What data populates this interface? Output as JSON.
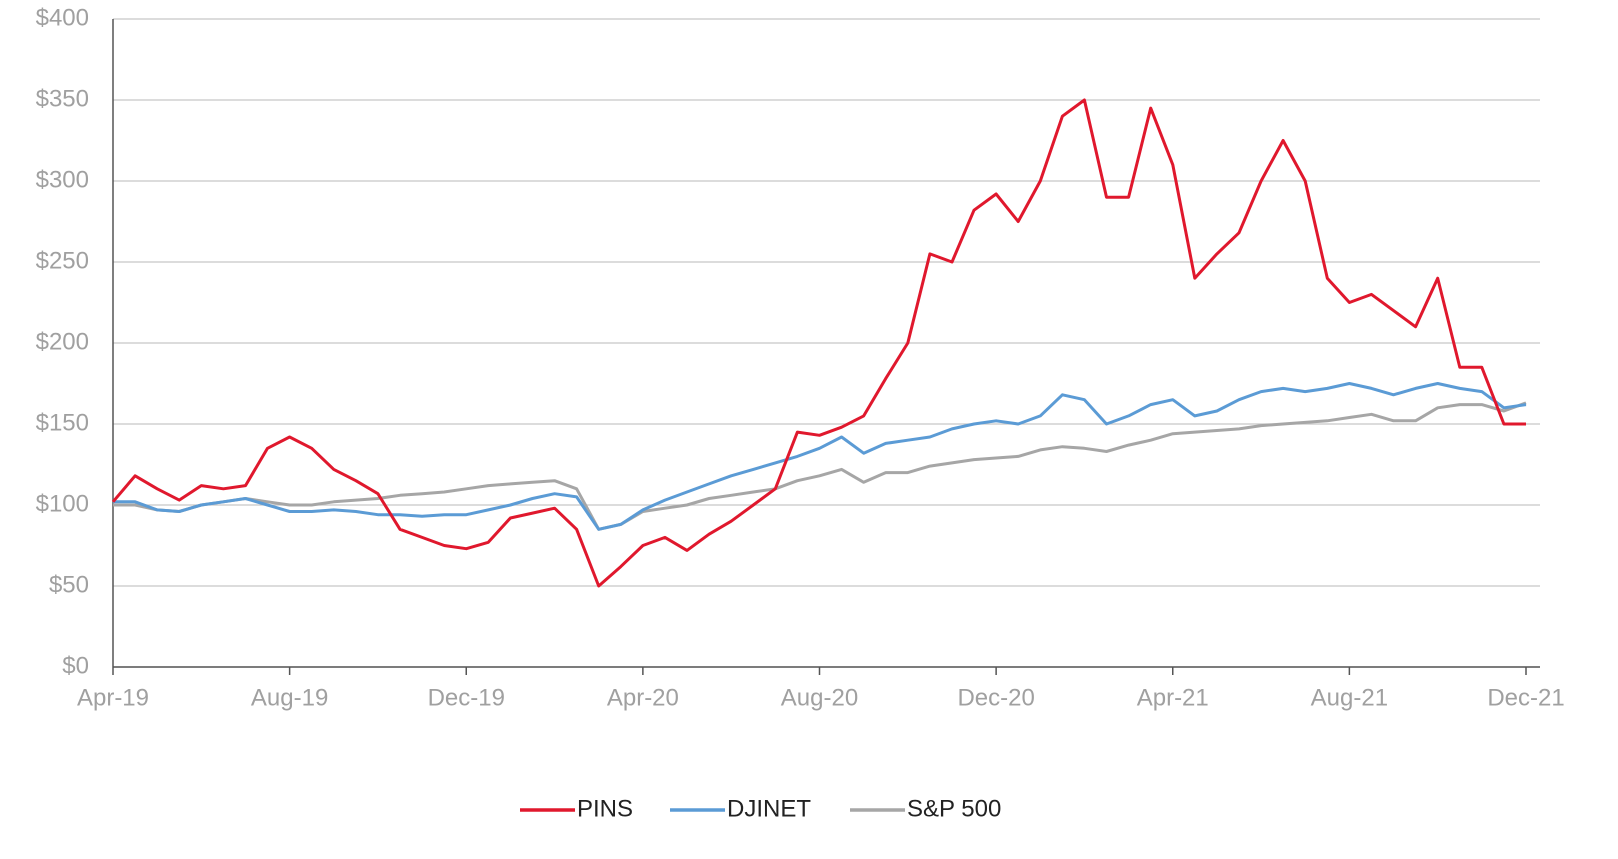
{
  "chart_data": {
    "type": "line",
    "categories": [
      "Apr-19",
      null,
      null,
      null,
      null,
      null,
      null,
      null,
      "Aug-19",
      null,
      null,
      null,
      null,
      null,
      null,
      null,
      "Dec-19",
      null,
      null,
      null,
      null,
      null,
      null,
      null,
      "Apr-20",
      null,
      null,
      null,
      null,
      null,
      null,
      null,
      "Aug-20",
      null,
      null,
      null,
      null,
      null,
      null,
      null,
      "Dec-20",
      null,
      null,
      null,
      null,
      null,
      null,
      null,
      "Apr-21",
      null,
      null,
      null,
      null,
      null,
      null,
      null,
      "Aug-21",
      null,
      null,
      null,
      null,
      null,
      null,
      null,
      "Dec-21"
    ],
    "series": [
      {
        "name": "PINS",
        "color": "#e0182d",
        "values": [
          102,
          118,
          110,
          103,
          112,
          110,
          112,
          135,
          142,
          135,
          122,
          115,
          107,
          85,
          80,
          75,
          73,
          77,
          92,
          95,
          98,
          85,
          50,
          62,
          75,
          80,
          72,
          82,
          90,
          100,
          110,
          145,
          143,
          148,
          155,
          178,
          200,
          255,
          250,
          282,
          292,
          275,
          300,
          340,
          350,
          290,
          290,
          345,
          310,
          240,
          255,
          268,
          300,
          325,
          300,
          240,
          225,
          230,
          220,
          210,
          240,
          185,
          185,
          150,
          150
        ]
      },
      {
        "name": "DJINET",
        "color": "#5b9bd5",
        "values": [
          102,
          102,
          97,
          96,
          100,
          102,
          104,
          100,
          96,
          96,
          97,
          96,
          94,
          94,
          93,
          94,
          94,
          97,
          100,
          104,
          107,
          105,
          85,
          88,
          97,
          103,
          108,
          113,
          118,
          122,
          126,
          130,
          135,
          142,
          132,
          138,
          140,
          142,
          147,
          150,
          152,
          150,
          155,
          168,
          165,
          150,
          155,
          162,
          165,
          155,
          158,
          165,
          170,
          172,
          170,
          172,
          175,
          172,
          168,
          172,
          175,
          172,
          170,
          160,
          162
        ]
      },
      {
        "name": "S&P 500",
        "color": "#a6a6a6",
        "values": [
          100,
          100,
          97,
          96,
          100,
          102,
          104,
          102,
          100,
          100,
          102,
          103,
          104,
          106,
          107,
          108,
          110,
          112,
          113,
          114,
          115,
          110,
          85,
          88,
          96,
          98,
          100,
          104,
          106,
          108,
          110,
          115,
          118,
          122,
          114,
          120,
          120,
          124,
          126,
          128,
          129,
          130,
          134,
          136,
          135,
          133,
          137,
          140,
          144,
          145,
          146,
          147,
          149,
          150,
          151,
          152,
          154,
          156,
          152,
          152,
          160,
          162,
          162,
          158,
          163
        ]
      }
    ],
    "ylim": [
      0,
      400
    ],
    "yticks": [
      {
        "value": 0,
        "label": "$0"
      },
      {
        "value": 50,
        "label": "$50"
      },
      {
        "value": 100,
        "label": "$100"
      },
      {
        "value": 150,
        "label": "$150"
      },
      {
        "value": 200,
        "label": "$200"
      },
      {
        "value": 250,
        "label": "$250"
      },
      {
        "value": 300,
        "label": "$300"
      },
      {
        "value": 350,
        "label": "$350"
      },
      {
        "value": 400,
        "label": "$400"
      }
    ],
    "grid": true,
    "legend": "bottom"
  }
}
